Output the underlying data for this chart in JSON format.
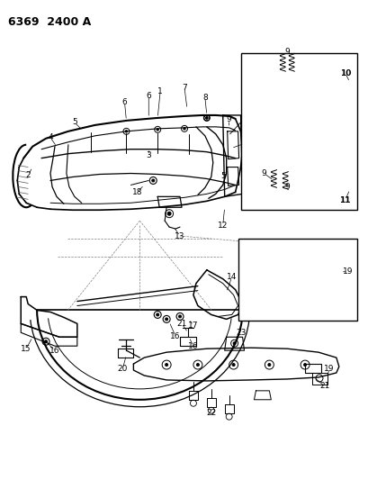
{
  "title": "6369  2400 A",
  "background_color": "#ffffff",
  "figsize": [
    4.1,
    5.33
  ],
  "dpi": 100
}
